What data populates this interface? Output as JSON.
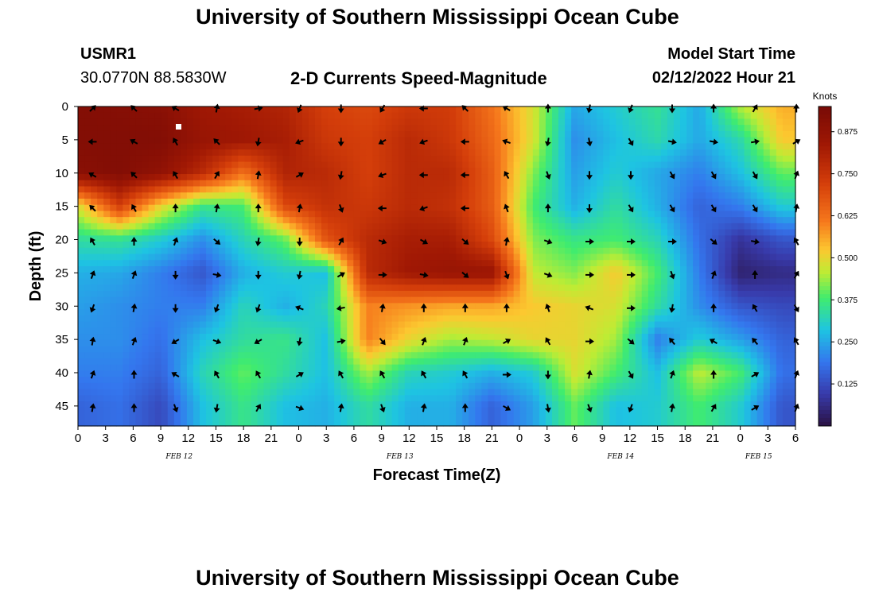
{
  "page": {
    "title_top": "University of Southern Mississippi Ocean Cube",
    "title_bottom": "University of Southern Mississippi Ocean Cube",
    "station": {
      "id": "USMR1",
      "coords": "30.0770N  88.5830W"
    },
    "plot_title": "2-D Currents Speed-Magnitude",
    "model_start": {
      "label": "Model Start Time",
      "value": "02/12/2022 Hour 21"
    }
  },
  "chart_data": {
    "type": "heatmap",
    "title": "2-D Currents Speed-Magnitude",
    "xlabel": "Forecast Time(Z)",
    "ylabel": "Depth (ft)",
    "colorbar_label": "Knots",
    "colorbar_ticks": [
      0.125,
      0.25,
      0.375,
      0.5,
      0.625,
      0.75,
      0.875
    ],
    "colorbar_tick_labels": [
      "0.125",
      "0.250",
      "0.375",
      "0.500",
      "0.625",
      "0.750",
      "0.875"
    ],
    "zlim": [
      0.0,
      0.95
    ],
    "xlim": [
      0,
      78
    ],
    "ylim": [
      0,
      48
    ],
    "x_ticks": [
      0,
      3,
      6,
      9,
      12,
      15,
      18,
      21,
      24,
      27,
      30,
      33,
      36,
      39,
      42,
      45,
      48,
      51,
      54,
      57,
      60,
      63,
      66,
      69,
      72,
      75,
      78
    ],
    "x_tick_labels": [
      "0",
      "3",
      "6",
      "9",
      "12",
      "15",
      "18",
      "21",
      "0",
      "3",
      "6",
      "9",
      "12",
      "15",
      "18",
      "21",
      "0",
      "3",
      "6",
      "9",
      "12",
      "15",
      "18",
      "21",
      "0",
      "3",
      "6"
    ],
    "y_ticks": [
      0,
      5,
      10,
      15,
      20,
      25,
      30,
      35,
      40,
      45
    ],
    "y_tick_labels": [
      "0",
      "5",
      "10",
      "15",
      "20",
      "25",
      "30",
      "35",
      "40",
      "45"
    ],
    "date_labels": [
      {
        "text": "FEB 12",
        "x": 11
      },
      {
        "text": "FEB 13",
        "x": 35
      },
      {
        "text": "FEB 14",
        "x": 59
      },
      {
        "text": "FEB 15",
        "x": 74
      }
    ],
    "grid_x": [
      0,
      4.5,
      9,
      13.5,
      18,
      22.5,
      27,
      31.5,
      36,
      40.5,
      45,
      49.5,
      54,
      58.5,
      63,
      67.5,
      72,
      76.5
    ],
    "grid_y": [
      0,
      5,
      10,
      15,
      20,
      25,
      30,
      35,
      40,
      45
    ],
    "speed": [
      [
        0.92,
        0.91,
        0.9,
        0.84,
        0.82,
        0.8,
        0.72,
        0.7,
        0.74,
        0.73,
        0.62,
        0.48,
        0.25,
        0.3,
        0.35,
        0.25,
        0.45,
        0.55
      ],
      [
        0.92,
        0.92,
        0.92,
        0.86,
        0.84,
        0.82,
        0.74,
        0.72,
        0.78,
        0.74,
        0.64,
        0.48,
        0.22,
        0.28,
        0.33,
        0.25,
        0.33,
        0.52
      ],
      [
        0.9,
        0.92,
        0.88,
        0.78,
        0.62,
        0.8,
        0.78,
        0.72,
        0.78,
        0.78,
        0.66,
        0.42,
        0.24,
        0.3,
        0.25,
        0.2,
        0.28,
        0.4
      ],
      [
        0.48,
        0.72,
        0.5,
        0.36,
        0.38,
        0.7,
        0.76,
        0.74,
        0.78,
        0.76,
        0.66,
        0.38,
        0.26,
        0.34,
        0.26,
        0.16,
        0.2,
        0.3
      ],
      [
        0.34,
        0.35,
        0.3,
        0.22,
        0.32,
        0.4,
        0.68,
        0.78,
        0.82,
        0.82,
        0.7,
        0.42,
        0.36,
        0.38,
        0.32,
        0.18,
        0.08,
        0.14
      ],
      [
        0.26,
        0.25,
        0.2,
        0.14,
        0.26,
        0.3,
        0.28,
        0.78,
        0.84,
        0.86,
        0.86,
        0.46,
        0.42,
        0.52,
        0.38,
        0.2,
        0.04,
        0.06
      ],
      [
        0.24,
        0.22,
        0.2,
        0.2,
        0.32,
        0.26,
        0.32,
        0.6,
        0.58,
        0.56,
        0.56,
        0.52,
        0.5,
        0.48,
        0.34,
        0.22,
        0.14,
        0.12
      ],
      [
        0.22,
        0.22,
        0.18,
        0.28,
        0.34,
        0.36,
        0.28,
        0.6,
        0.5,
        0.44,
        0.46,
        0.5,
        0.5,
        0.44,
        0.2,
        0.3,
        0.24,
        0.16
      ],
      [
        0.2,
        0.2,
        0.16,
        0.32,
        0.4,
        0.34,
        0.28,
        0.44,
        0.32,
        0.3,
        0.26,
        0.3,
        0.48,
        0.38,
        0.28,
        0.46,
        0.38,
        0.18
      ],
      [
        0.16,
        0.18,
        0.12,
        0.28,
        0.36,
        0.28,
        0.26,
        0.34,
        0.26,
        0.26,
        0.16,
        0.24,
        0.4,
        0.28,
        0.3,
        0.38,
        0.3,
        0.14
      ]
    ],
    "direction_deg": [
      [
        45,
        315,
        300,
        10,
        80,
        200,
        180,
        210,
        270,
        315,
        300,
        0,
        190,
        200,
        180,
        0,
        30,
        0
      ],
      [
        270,
        300,
        330,
        315,
        190,
        250,
        180,
        240,
        250,
        270,
        290,
        190,
        170,
        150,
        100,
        100,
        80,
        60
      ],
      [
        300,
        315,
        330,
        30,
        10,
        60,
        190,
        250,
        270,
        270,
        330,
        160,
        180,
        180,
        150,
        150,
        150,
        20
      ],
      [
        315,
        330,
        0,
        10,
        0,
        10,
        160,
        270,
        250,
        270,
        340,
        0,
        180,
        150,
        150,
        150,
        150,
        10
      ],
      [
        330,
        0,
        20,
        130,
        190,
        180,
        30,
        110,
        120,
        130,
        10,
        110,
        90,
        90,
        90,
        130,
        100,
        330
      ],
      [
        20,
        20,
        180,
        100,
        180,
        190,
        60,
        90,
        100,
        130,
        160,
        110,
        90,
        90,
        160,
        20,
        0,
        30
      ],
      [
        200,
        10,
        180,
        200,
        200,
        290,
        260,
        10,
        0,
        0,
        0,
        340,
        290,
        90,
        190,
        0,
        330,
        150
      ],
      [
        10,
        20,
        240,
        110,
        240,
        190,
        80,
        140,
        20,
        20,
        60,
        330,
        90,
        130,
        320,
        300,
        320,
        330
      ],
      [
        20,
        0,
        300,
        330,
        330,
        60,
        330,
        330,
        330,
        330,
        90,
        180,
        10,
        150,
        20,
        0,
        60,
        20
      ],
      [
        10,
        0,
        160,
        190,
        30,
        110,
        10,
        160,
        10,
        0,
        120,
        170,
        160,
        200,
        10,
        30,
        60,
        20
      ]
    ]
  }
}
